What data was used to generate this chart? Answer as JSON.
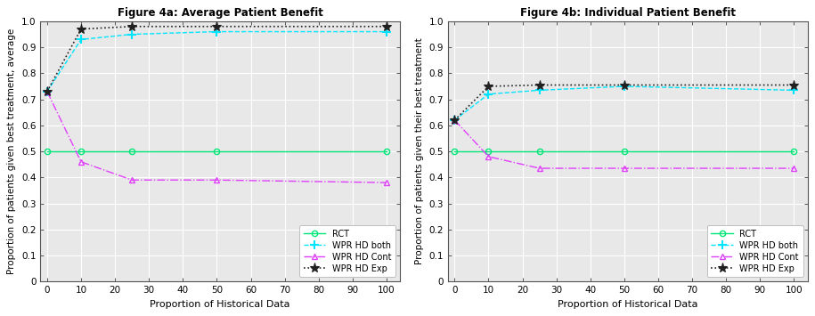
{
  "fig4a": {
    "title": "Figure 4a: Average Patient Benefit",
    "xlabel": "Proportion of Historical Data",
    "ylabel": "Proportion of patients given best treatment, average",
    "x": [
      0,
      10,
      25,
      50,
      100
    ],
    "RCT": [
      0.5,
      0.5,
      0.5,
      0.5,
      0.5
    ],
    "WPR_HD_both": [
      0.73,
      0.93,
      0.95,
      0.96,
      0.96
    ],
    "WPR_HD_Cont": [
      0.73,
      0.46,
      0.39,
      0.39,
      0.38
    ],
    "WPR_HD_Exp": [
      0.73,
      0.97,
      0.98,
      0.98,
      0.98
    ],
    "ylim": [
      0,
      1.0
    ],
    "yticks": [
      0,
      0.1,
      0.2,
      0.3,
      0.4,
      0.5,
      0.6,
      0.7,
      0.8,
      0.9,
      1.0
    ]
  },
  "fig4b": {
    "title": "Figure 4b: Individual Patient Benefit",
    "xlabel": "Proportion of Historical Data",
    "ylabel": "Proportion of patients given their best treatment",
    "x": [
      0,
      10,
      25,
      50,
      100
    ],
    "RCT": [
      0.5,
      0.5,
      0.5,
      0.5,
      0.5
    ],
    "WPR_HD_both": [
      0.62,
      0.72,
      0.735,
      0.75,
      0.735
    ],
    "WPR_HD_Cont": [
      0.62,
      0.48,
      0.435,
      0.435,
      0.435
    ],
    "WPR_HD_Exp": [
      0.62,
      0.75,
      0.755,
      0.755,
      0.755
    ],
    "ylim": [
      0,
      1.0
    ],
    "yticks": [
      0,
      0.1,
      0.2,
      0.3,
      0.4,
      0.5,
      0.6,
      0.7,
      0.8,
      0.9,
      1.0
    ]
  },
  "colors": {
    "RCT": "#00e676",
    "WPR_HD_both": "#00e5ff",
    "WPR_HD_Cont": "#e040fb",
    "WPR_HD_Exp": "#212121"
  },
  "xticks": [
    0,
    10,
    20,
    30,
    40,
    50,
    60,
    70,
    80,
    90,
    100
  ],
  "xlim": [
    -2,
    104
  ],
  "ax_bgcolor": "#e8e8e8",
  "legend_labels": [
    "RCT",
    "WPR HD both",
    "WPR HD Cont",
    "WPR HD Exp"
  ]
}
